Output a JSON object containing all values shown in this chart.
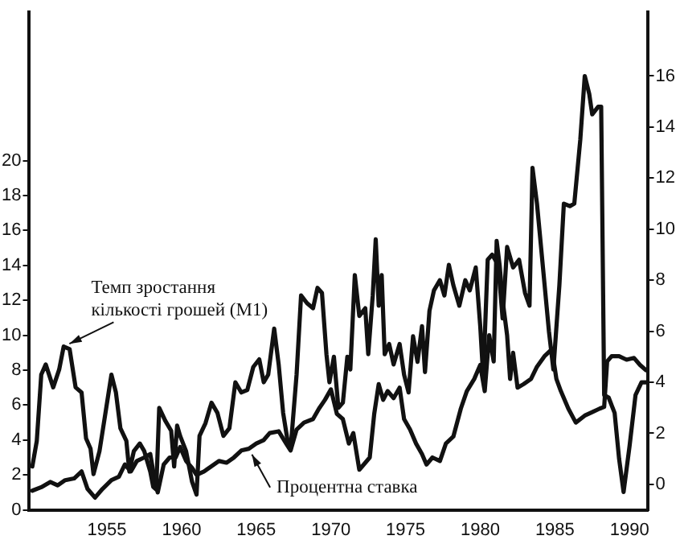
{
  "chart_data": {
    "type": "line",
    "xlim": [
      1949.8,
      1991.2
    ],
    "xticks": [
      1955,
      1960,
      1965,
      1970,
      1975,
      1980,
      1985,
      1990
    ],
    "ylim": [
      0,
      28.5
    ],
    "yticks": [
      0,
      2,
      4,
      6,
      8,
      10,
      12,
      14,
      16,
      18,
      20
    ],
    "y2lim": [
      -1,
      18.5
    ],
    "y2ticks": [
      0,
      2,
      4,
      6,
      8,
      10,
      12,
      14,
      16
    ],
    "grid": false,
    "legend": false,
    "marker": "none",
    "line_style": "solid",
    "series": [
      {
        "name": "Темп зростання кількості грошей (M1)",
        "color": "#111111",
        "axis": "y2",
        "x": [
          1950.0,
          1950.3,
          1950.6,
          1950.9,
          1951.4,
          1951.8,
          1952.1,
          1952.5,
          1952.9,
          1953.3,
          1953.6,
          1953.9,
          1954.1,
          1954.5,
          1954.9,
          1955.3,
          1955.6,
          1955.9,
          1956.3,
          1956.5,
          1956.8,
          1957.2,
          1957.5,
          1957.9,
          1958.1,
          1958.3,
          1958.5,
          1958.9,
          1959.3,
          1959.5,
          1959.7,
          1959.9,
          1960.3,
          1960.7,
          1961.0,
          1961.2,
          1961.6,
          1962.0,
          1962.4,
          1962.8,
          1963.2,
          1963.6,
          1964.0,
          1964.4,
          1964.8,
          1965.2,
          1965.5,
          1965.8,
          1966.2,
          1966.5,
          1966.8,
          1967.1,
          1967.3,
          1967.7,
          1968.0,
          1968.4,
          1968.8,
          1969.1,
          1969.4,
          1969.7,
          1969.9,
          1970.2,
          1970.5,
          1970.8,
          1971.1,
          1971.3,
          1971.6,
          1971.9,
          1972.3,
          1972.5,
          1972.8,
          1973.0,
          1973.2,
          1973.4,
          1973.6,
          1973.9,
          1974.2,
          1974.6,
          1974.9,
          1975.2,
          1975.5,
          1975.8,
          1976.1,
          1976.3,
          1976.6,
          1976.9,
          1977.3,
          1977.6,
          1977.9,
          1978.2,
          1978.6,
          1979.0,
          1979.3,
          1979.7,
          1980.0,
          1980.2,
          1980.5,
          1980.8,
          1981.2,
          1981.5,
          1981.8,
          1982.2,
          1982.6,
          1983.0,
          1983.3,
          1983.5,
          1983.8,
          1984.2,
          1984.6,
          1984.9,
          1985.3,
          1985.6,
          1986.0,
          1986.3,
          1986.7,
          1987.0,
          1987.3,
          1987.5,
          1987.9,
          1988.1,
          1988.3,
          1988.6,
          1989.0,
          1989.3,
          1989.6,
          1990.0,
          1990.4,
          1990.8,
          1991.1
        ],
        "values": [
          0.7,
          1.7,
          4.3,
          4.7,
          3.8,
          4.5,
          5.4,
          5.3,
          3.8,
          3.6,
          1.8,
          1.4,
          0.4,
          1.3,
          2.8,
          4.3,
          3.6,
          2.2,
          1.7,
          0.5,
          1.3,
          1.6,
          1.3,
          0.5,
          -0.1,
          -0.2,
          3.0,
          2.5,
          2.1,
          0.7,
          2.3,
          1.9,
          1.3,
          0.1,
          -0.4,
          1.9,
          2.4,
          3.2,
          2.8,
          1.9,
          2.2,
          4.0,
          3.6,
          3.7,
          4.6,
          4.9,
          4.0,
          4.3,
          6.1,
          4.7,
          2.8,
          1.7,
          1.4,
          4.3,
          7.4,
          7.1,
          6.9,
          7.7,
          7.5,
          5.1,
          4.0,
          5.0,
          3.0,
          3.2,
          5.0,
          4.5,
          8.2,
          6.6,
          6.9,
          5.1,
          7.4,
          9.6,
          7.0,
          8.2,
          5.1,
          5.5,
          4.7,
          5.5,
          4.3,
          3.6,
          5.8,
          4.8,
          6.2,
          4.4,
          6.8,
          7.6,
          8.0,
          7.4,
          8.6,
          7.8,
          7.0,
          8.0,
          7.6,
          8.5,
          6.2,
          4.2,
          8.8,
          9.0,
          8.6,
          6.5,
          9.3,
          8.5,
          8.8,
          7.5,
          7.0,
          12.4,
          11.0,
          8.5,
          6.0,
          4.5,
          7.8,
          11.0,
          10.9,
          11.0,
          13.5,
          16.0,
          15.3,
          14.5,
          14.8,
          14.8,
          3.5,
          3.4,
          2.8,
          1.0,
          -0.3,
          1.5,
          3.5,
          4.0,
          4.0
        ]
      },
      {
        "name": "Процентна ставка",
        "color": "#111111",
        "axis": "y",
        "x": [
          1950.0,
          1950.6,
          1951.2,
          1951.7,
          1952.2,
          1952.8,
          1953.3,
          1953.7,
          1954.2,
          1954.7,
          1955.3,
          1955.8,
          1956.2,
          1956.6,
          1957.0,
          1957.5,
          1957.9,
          1958.1,
          1958.4,
          1958.8,
          1959.2,
          1959.6,
          1959.9,
          1960.3,
          1960.7,
          1961.0,
          1961.5,
          1962.0,
          1962.5,
          1963.0,
          1963.5,
          1964.0,
          1964.5,
          1965.0,
          1965.5,
          1965.9,
          1966.5,
          1967.0,
          1967.3,
          1967.7,
          1968.2,
          1968.8,
          1969.2,
          1969.6,
          1970.0,
          1970.4,
          1970.8,
          1971.2,
          1971.5,
          1971.9,
          1972.2,
          1972.6,
          1972.9,
          1973.2,
          1973.5,
          1973.8,
          1974.2,
          1974.6,
          1974.9,
          1975.3,
          1975.7,
          1976.1,
          1976.4,
          1976.8,
          1977.3,
          1977.7,
          1978.2,
          1978.7,
          1979.1,
          1979.6,
          1980.0,
          1980.3,
          1980.6,
          1980.9,
          1981.1,
          1981.3,
          1981.5,
          1981.8,
          1982.0,
          1982.2,
          1982.5,
          1982.9,
          1983.4,
          1983.8,
          1984.3,
          1984.8,
          1985.1,
          1985.4,
          1985.9,
          1986.4,
          1987.0,
          1987.5,
          1988.0,
          1988.3,
          1988.5,
          1988.8,
          1989.3,
          1989.8,
          1990.3,
          1990.7,
          1991.1
        ],
        "values": [
          1.1,
          1.3,
          1.6,
          1.4,
          1.7,
          1.8,
          2.2,
          1.2,
          0.7,
          1.2,
          1.7,
          1.9,
          2.6,
          2.2,
          2.8,
          3.0,
          3.2,
          2.2,
          1.0,
          2.6,
          3.0,
          3.0,
          3.6,
          2.8,
          2.4,
          2.0,
          2.2,
          2.5,
          2.8,
          2.7,
          3.0,
          3.4,
          3.5,
          3.8,
          4.0,
          4.4,
          4.5,
          3.8,
          3.4,
          4.6,
          5.0,
          5.2,
          5.8,
          6.3,
          6.9,
          5.5,
          5.2,
          3.8,
          4.4,
          2.3,
          2.6,
          3.0,
          5.5,
          7.2,
          6.3,
          6.8,
          6.4,
          7.0,
          5.2,
          4.6,
          3.8,
          3.2,
          2.6,
          3.0,
          2.8,
          3.8,
          4.2,
          5.8,
          6.8,
          7.5,
          8.3,
          6.8,
          10.0,
          8.5,
          15.4,
          14.0,
          12.0,
          10.0,
          7.5,
          9.0,
          7.0,
          7.2,
          7.5,
          8.2,
          8.8,
          9.2,
          7.5,
          6.8,
          5.8,
          5.0,
          5.4,
          5.6,
          5.8,
          5.9,
          8.5,
          8.8,
          8.8,
          8.6,
          8.7,
          8.3,
          8.0
        ]
      }
    ]
  }
}
